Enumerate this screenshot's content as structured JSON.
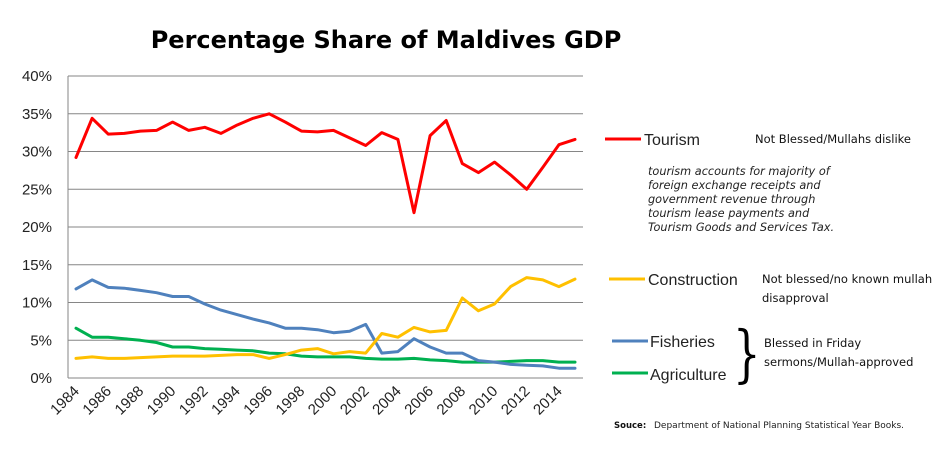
{
  "chart_data": {
    "type": "line",
    "title": "Percentage Share of Maldives GDP",
    "xlabel": "",
    "ylabel": "",
    "ylim": [
      0,
      40
    ],
    "y_ticks": [
      "0%",
      "5%",
      "10%",
      "15%",
      "20%",
      "25%",
      "30%",
      "35%",
      "40%"
    ],
    "y_tick_values": [
      0,
      5,
      10,
      15,
      20,
      25,
      30,
      35,
      40
    ],
    "x": [
      1984,
      1985,
      1986,
      1987,
      1988,
      1989,
      1990,
      1991,
      1992,
      1993,
      1994,
      1995,
      1996,
      1997,
      1998,
      1999,
      2000,
      2001,
      2002,
      2003,
      2004,
      2005,
      2006,
      2007,
      2008,
      2009,
      2010,
      2011,
      2012,
      2013,
      2014,
      2015
    ],
    "x_tick_labels": [
      "1984",
      "1986",
      "1988",
      "1990",
      "1992",
      "1994",
      "1996",
      "1998",
      "2000",
      "2002",
      "2004",
      "2006",
      "2008",
      "2010",
      "2012",
      "2014"
    ],
    "grid": true,
    "legend_position": "right",
    "series": [
      {
        "name": "Tourism",
        "color": "#FF0000",
        "values": [
          29.2,
          34.4,
          32.3,
          32.4,
          32.7,
          32.8,
          33.9,
          32.8,
          33.2,
          32.4,
          33.5,
          34.4,
          35.0,
          33.9,
          32.7,
          32.6,
          32.8,
          31.8,
          30.8,
          32.5,
          31.6,
          21.9,
          32.1,
          34.1,
          28.4,
          27.2,
          28.6,
          26.9,
          25.0,
          27.9,
          30.9,
          31.6
        ]
      },
      {
        "name": "Construction",
        "color": "#FFC000",
        "values": [
          2.6,
          2.8,
          2.6,
          2.6,
          2.7,
          2.8,
          2.9,
          2.9,
          2.9,
          3.0,
          3.1,
          3.1,
          2.6,
          3.1,
          3.7,
          3.9,
          3.2,
          3.5,
          3.3,
          5.9,
          5.4,
          6.7,
          6.1,
          6.3,
          10.6,
          8.9,
          9.8,
          12.1,
          13.3,
          13.0,
          12.1,
          13.1
        ]
      },
      {
        "name": "Fisheries",
        "color": "#4F81BD",
        "values": [
          11.8,
          13.0,
          12.0,
          11.9,
          11.6,
          11.3,
          10.8,
          10.8,
          9.8,
          9.0,
          8.4,
          7.8,
          7.3,
          6.6,
          6.6,
          6.4,
          6.0,
          6.2,
          7.1,
          3.3,
          3.5,
          5.2,
          4.1,
          3.3,
          3.3,
          2.3,
          2.1,
          1.8,
          1.7,
          1.6,
          1.3,
          1.3
        ]
      },
      {
        "name": "Agriculture",
        "color": "#00B050",
        "values": [
          6.6,
          5.4,
          5.4,
          5.2,
          5.0,
          4.7,
          4.1,
          4.1,
          3.9,
          3.8,
          3.7,
          3.6,
          3.3,
          3.2,
          2.9,
          2.8,
          2.8,
          2.8,
          2.6,
          2.5,
          2.5,
          2.6,
          2.4,
          2.3,
          2.1,
          2.1,
          2.1,
          2.2,
          2.3,
          2.3,
          2.1,
          2.1
        ]
      }
    ],
    "annotations": {
      "tourism_status": "Not Blessed/Mullahs dislike",
      "tourism_note": [
        "tourism accounts for majority of",
        "foreign exchange receipts and",
        "government revenue through",
        "tourism lease payments and",
        "Tourism Goods and Services Tax."
      ],
      "construction_status": [
        "Not blessed/no known mullah",
        "disapproval"
      ],
      "brace_symbol": "}",
      "blessed_status": [
        "Blessed in Friday",
        "sermons/Mullah-approved"
      ]
    },
    "source_label": "Souce:",
    "source_text": "Department of National Planning Statistical Year Books."
  }
}
